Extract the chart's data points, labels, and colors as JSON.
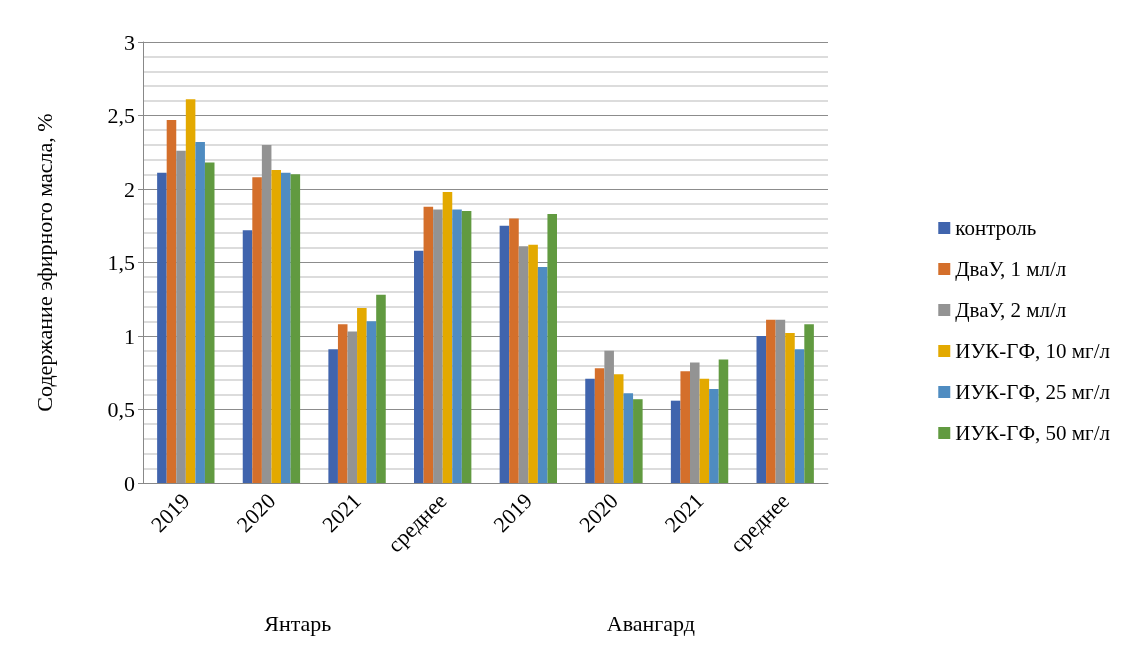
{
  "chart_data": {
    "type": "bar",
    "ylabel": "Содержание эфирного масла, %",
    "categories": [
      "2019",
      "2020",
      "2021",
      "среднее",
      "2019",
      "2020",
      "2021",
      "среднее"
    ],
    "annotations": [
      "Янтарь",
      "Авангард"
    ],
    "series": [
      {
        "name": "контроль",
        "color": "#4064ad",
        "values": [
          2.11,
          1.72,
          0.91,
          1.58,
          1.75,
          0.71,
          0.56,
          1.0
        ]
      },
      {
        "name": "ДваУ, 1 мл/л",
        "color": "#d46f2b",
        "values": [
          2.47,
          2.08,
          1.08,
          1.88,
          1.8,
          0.78,
          0.76,
          1.11
        ]
      },
      {
        "name": "ДваУ, 2 мл/л",
        "color": "#939393",
        "values": [
          2.26,
          2.3,
          1.03,
          1.86,
          1.61,
          0.9,
          0.82,
          1.11
        ]
      },
      {
        "name": "ИУК-ГФ, 10 мг/л",
        "color": "#e3a900",
        "values": [
          2.61,
          2.13,
          1.19,
          1.98,
          1.62,
          0.74,
          0.71,
          1.02
        ]
      },
      {
        "name": "ИУК-ГФ, 25 мг/л",
        "color": "#4f8cc1",
        "values": [
          2.32,
          2.11,
          1.1,
          1.86,
          1.47,
          0.61,
          0.64,
          0.91
        ]
      },
      {
        "name": "ИУК-ГФ, 50 мг/л",
        "color": "#619a40",
        "values": [
          2.18,
          2.1,
          1.28,
          1.85,
          1.83,
          0.57,
          0.84,
          1.08
        ]
      }
    ],
    "ylim": [
      0,
      3
    ],
    "yticks": [
      0,
      {
        "value": 0.5,
        "label": "0,5"
      },
      1,
      {
        "value": 1.5,
        "label": "1,5"
      },
      2,
      {
        "value": 2.5,
        "label": "2,5"
      },
      3
    ],
    "grid": true,
    "legend": "right"
  }
}
